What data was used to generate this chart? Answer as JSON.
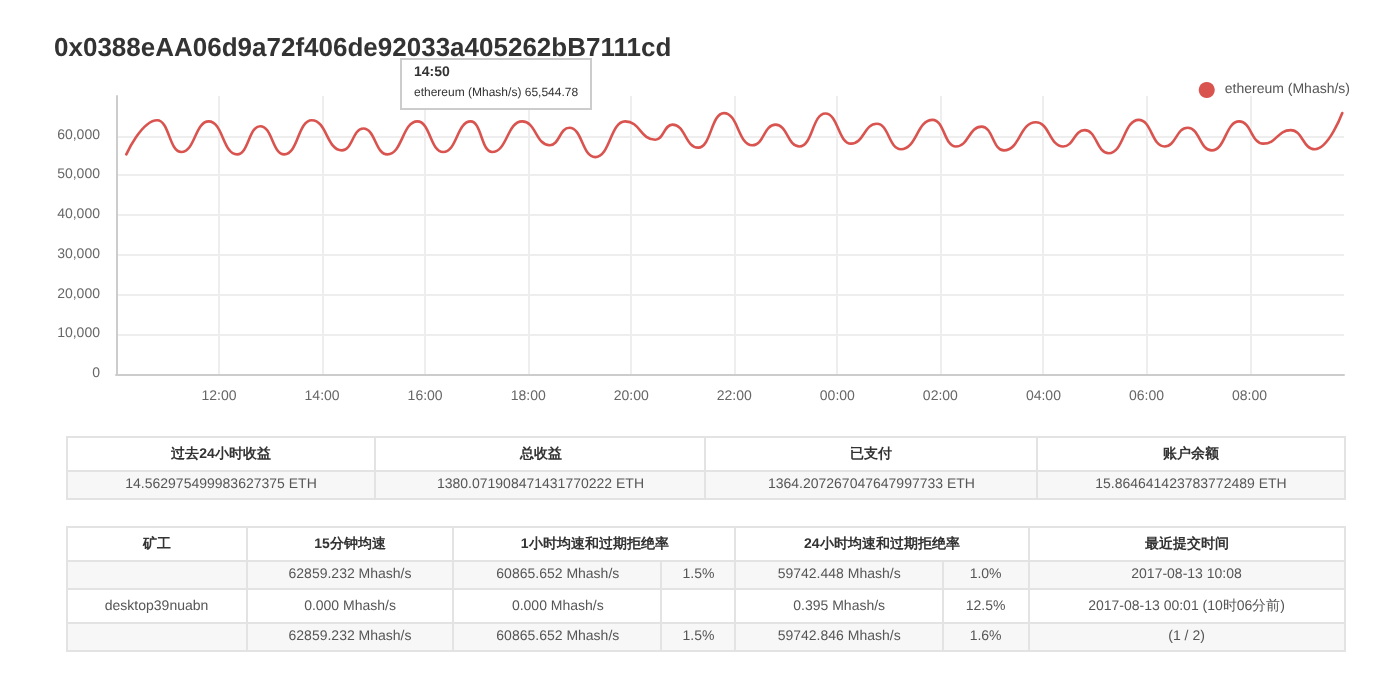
{
  "chart_data": [
    {
      "type": "line",
      "title": "0x0388eAA06d9a72f406de92033a405262bB7111cd",
      "x": [
        "2017-08-12T10:12",
        "2017-08-12T10:48",
        "2017-08-12T11:16",
        "2017-08-12T11:48",
        "2017-08-12T12:21",
        "2017-08-12T12:48",
        "2017-08-12T13:16",
        "2017-08-12T13:48",
        "2017-08-12T14:23",
        "2017-08-12T14:48",
        "2017-08-12T15:16",
        "2017-08-12T15:51",
        "2017-08-12T16:21",
        "2017-08-12T16:53",
        "2017-08-12T17:18",
        "2017-08-12T17:53",
        "2017-08-12T18:25",
        "2017-08-12T18:48",
        "2017-08-12T19:18",
        "2017-08-12T19:53",
        "2017-08-12T20:28",
        "2017-08-12T20:48",
        "2017-08-12T21:18",
        "2017-08-12T21:48",
        "2017-08-12T22:21",
        "2017-08-12T22:48",
        "2017-08-12T23:16",
        "2017-08-12T23:46",
        "2017-08-13T00:16",
        "2017-08-13T00:46",
        "2017-08-13T01:14",
        "2017-08-13T01:51",
        "2017-08-13T02:18",
        "2017-08-13T02:48",
        "2017-08-13T03:14",
        "2017-08-13T03:51",
        "2017-08-13T04:23",
        "2017-08-13T04:48",
        "2017-08-13T05:16",
        "2017-08-13T05:51",
        "2017-08-13T06:21",
        "2017-08-13T06:48",
        "2017-08-13T07:16",
        "2017-08-13T07:48",
        "2017-08-13T08:16",
        "2017-08-13T08:48",
        "2017-08-13T09:16",
        "2017-08-13T09:48"
      ],
      "series": [
        {
          "name": "ethereum (Mhash/s)",
          "color": "#d9534f",
          "values": [
            55300,
            63900,
            55900,
            63600,
            55300,
            62400,
            55300,
            63900,
            56300,
            61800,
            55300,
            63600,
            55900,
            63600,
            55900,
            63600,
            57600,
            62000,
            54600,
            63600,
            59000,
            62800,
            57000,
            65700,
            57600,
            62800,
            57300,
            65600,
            58000,
            63000,
            56600,
            64000,
            57300,
            62300,
            56300,
            63400,
            57300,
            61400,
            55600,
            64000,
            57300,
            62000,
            56300,
            63600,
            58000,
            61400,
            56600,
            65700
          ]
        }
      ],
      "xlim": [
        "2017-08-12T10:00",
        "2017-08-13T09:50"
      ],
      "xticks": [
        {
          "value": "2017-08-12T12:00",
          "label": "12:00"
        },
        {
          "value": "2017-08-12T14:00",
          "label": "14:00"
        },
        {
          "value": "2017-08-12T16:00",
          "label": "16:00"
        },
        {
          "value": "2017-08-12T18:00",
          "label": "18:00"
        },
        {
          "value": "2017-08-12T20:00",
          "label": "20:00"
        },
        {
          "value": "2017-08-12T22:00",
          "label": "22:00"
        },
        {
          "value": "2017-08-13T00:00",
          "label": "00:00"
        },
        {
          "value": "2017-08-13T02:00",
          "label": "02:00"
        },
        {
          "value": "2017-08-13T04:00",
          "label": "04:00"
        },
        {
          "value": "2017-08-13T06:00",
          "label": "06:00"
        },
        {
          "value": "2017-08-13T08:00",
          "label": "08:00"
        }
      ],
      "ylim": [
        0,
        70000
      ],
      "yticks": [
        {
          "value": 0,
          "label": "0"
        },
        {
          "value": 10000,
          "label": "10,000"
        },
        {
          "value": 20000,
          "label": "20,000"
        },
        {
          "value": 30000,
          "label": "30,000"
        },
        {
          "value": 40000,
          "label": "40,000"
        },
        {
          "value": 50000,
          "label": "50,000"
        },
        {
          "value": 60000,
          "label": "60,000"
        }
      ],
      "grid": true,
      "legend": "top right",
      "marker": "none",
      "line_style": "solid",
      "annotations": [
        "14:50",
        "ethereum (Mhash/s)  65,544.78"
      ]
    },
    {
      "type": "other",
      "categories": [
        "过去24小时收益",
        "总收益",
        "已支付",
        "账户余额"
      ],
      "cell_labels": [
        [
          "14.562975499983627375 ETH",
          "1380.071908471431770222 ETH",
          "1364.207267047647997733 ETH",
          "15.864641423783772489 ETH"
        ]
      ]
    },
    {
      "type": "other",
      "categories": [
        "矿工",
        "15分钟均速",
        "1小时均速和过期拒绝率",
        null,
        "24小时均速和过期拒绝率",
        null,
        "最近提交时间"
      ],
      "cell_labels": [
        [
          null,
          "62859.232 Mhash/s",
          "60865.652 Mhash/s",
          "1.5%",
          "59742.448 Mhash/s",
          "1.0%",
          "2017-08-13 10:08"
        ],
        [
          "desktop39nuabn",
          "0.000 Mhash/s",
          "0.000 Mhash/s",
          null,
          "0.395 Mhash/s",
          "12.5%",
          "2017-08-13 00:01 (10时06分前)"
        ],
        [
          null,
          "62859.232 Mhash/s",
          "60865.652 Mhash/s",
          "1.5%",
          "59742.846 Mhash/s",
          "1.6%",
          "(1 / 2)"
        ]
      ]
    }
  ]
}
